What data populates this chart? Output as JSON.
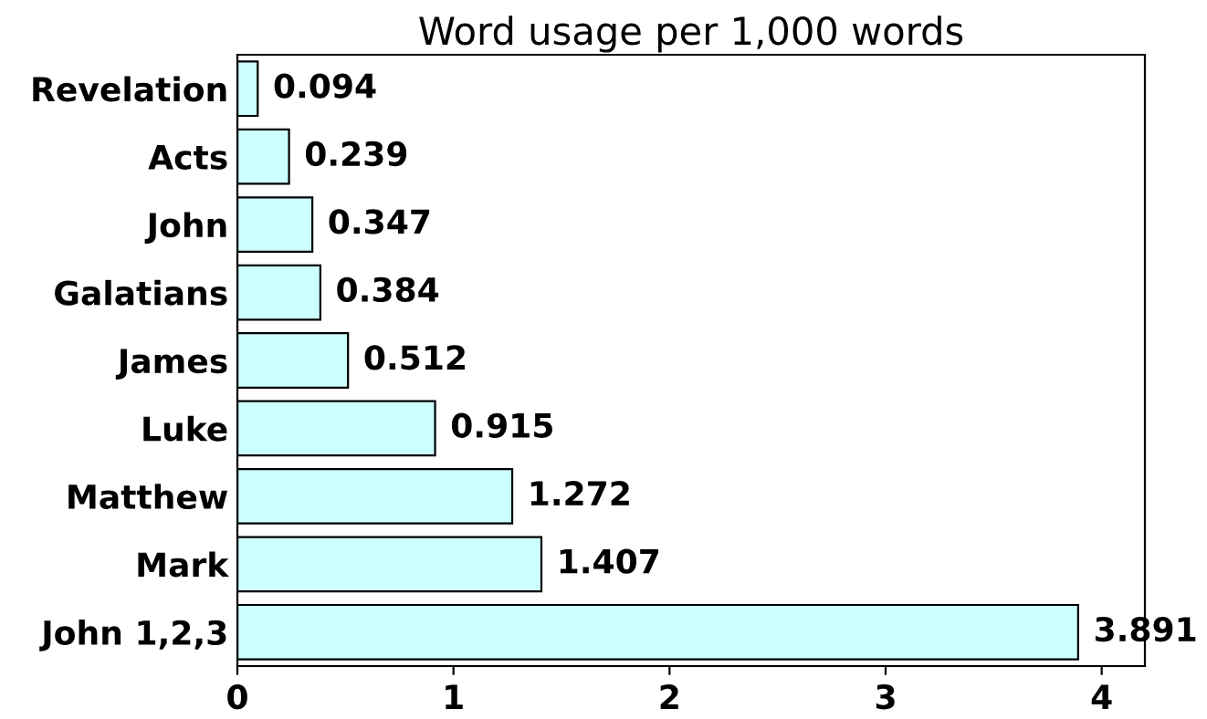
{
  "chart_data": {
    "type": "bar",
    "orientation": "horizontal",
    "title": "Word usage per 1,000 words",
    "categories": [
      "Revelation",
      "Acts",
      "John",
      "Galatians",
      "James",
      "Luke",
      "Matthew",
      "Mark",
      "John 1,2,3"
    ],
    "values": [
      0.094,
      0.239,
      0.347,
      0.384,
      0.512,
      0.915,
      1.272,
      1.407,
      3.891
    ],
    "color": "#ccffff",
    "xlim": [
      0,
      4.2
    ],
    "xticks": [
      0,
      1,
      2,
      3,
      4
    ],
    "data_labels": true,
    "grid": false,
    "legend": false
  }
}
